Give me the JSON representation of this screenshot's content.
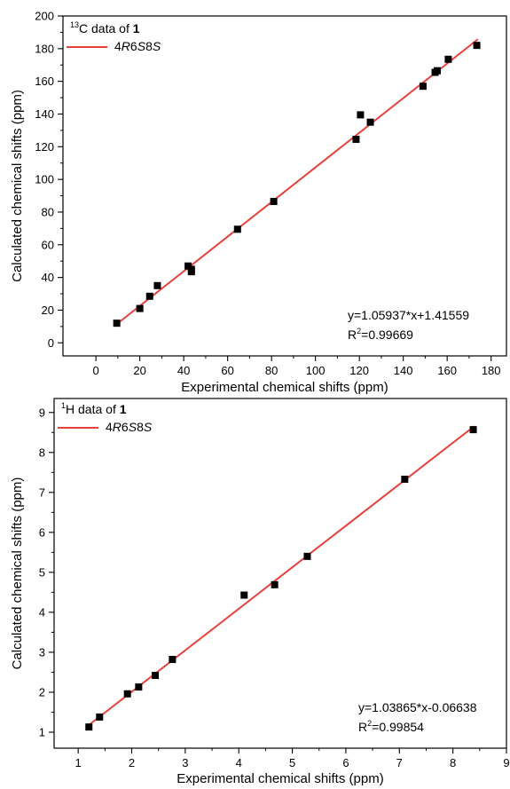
{
  "chart_data": [
    {
      "type": "scatter",
      "legend": {
        "data_label": {
          "sup": "13",
          "text": "C data of ",
          "bold": "1"
        },
        "fit_label": {
          "prefix": "4",
          "R": "R",
          "mid1": "6",
          "S1": "S",
          "mid2": "8",
          "S2": "S"
        },
        "position": "top-left"
      },
      "equation": "y=1.05937*x+1.41559",
      "r2": {
        "prefix": "R",
        "sup": "2",
        "value": "=0.99669"
      },
      "xlabel": "Experimental chemical shifts (ppm)",
      "ylabel": "Calculated chemical shifts (ppm)",
      "xlim": [
        -15,
        187
      ],
      "ylim": [
        -8,
        200
      ],
      "xticks": [
        0,
        20,
        40,
        60,
        80,
        100,
        120,
        140,
        160,
        180
      ],
      "yticks": [
        0,
        20,
        40,
        60,
        80,
        100,
        120,
        140,
        160,
        180,
        200
      ],
      "fit": {
        "slope": 1.05937,
        "intercept": 1.41559,
        "x_range": [
          9,
          174
        ]
      },
      "points": [
        {
          "x": 9.5,
          "y": 12
        },
        {
          "x": 20,
          "y": 21
        },
        {
          "x": 24.5,
          "y": 28.5
        },
        {
          "x": 28,
          "y": 35
        },
        {
          "x": 42,
          "y": 47
        },
        {
          "x": 43.5,
          "y": 43.5
        },
        {
          "x": 43.5,
          "y": 45
        },
        {
          "x": 64.5,
          "y": 69.5
        },
        {
          "x": 81,
          "y": 86.5
        },
        {
          "x": 118.5,
          "y": 124.5
        },
        {
          "x": 120.5,
          "y": 139.5
        },
        {
          "x": 125,
          "y": 135
        },
        {
          "x": 149,
          "y": 157
        },
        {
          "x": 154.5,
          "y": 165.5
        },
        {
          "x": 155.5,
          "y": 166.5
        },
        {
          "x": 160.5,
          "y": 173.5
        },
        {
          "x": 173.5,
          "y": 182
        }
      ]
    },
    {
      "type": "scatter",
      "legend": {
        "data_label": {
          "sup": "1",
          "text": "H data of ",
          "bold": "1"
        },
        "fit_label": {
          "prefix": "4",
          "R": "R",
          "mid1": "6",
          "S1": "S",
          "mid2": "8",
          "S2": "S"
        },
        "position": "top-left"
      },
      "equation": "y=1.03865*x-0.06638",
      "r2": {
        "prefix": "R",
        "sup": "2",
        "value": "=0.99854"
      },
      "xlabel": "Experimental chemical shifts (ppm)",
      "ylabel": "Calculated chemical shifts (ppm)",
      "xlim": [
        0.55,
        9
      ],
      "ylim": [
        0.6,
        9.35
      ],
      "xticks": [
        1,
        2,
        3,
        4,
        5,
        6,
        7,
        8,
        9
      ],
      "yticks": [
        1,
        2,
        3,
        4,
        5,
        6,
        7,
        8,
        9
      ],
      "fit": {
        "slope": 1.03865,
        "intercept": -0.06638,
        "x_range": [
          1.2,
          8.4
        ]
      },
      "points": [
        {
          "x": 1.2,
          "y": 1.13
        },
        {
          "x": 1.4,
          "y": 1.38
        },
        {
          "x": 1.92,
          "y": 1.96
        },
        {
          "x": 2.13,
          "y": 2.13
        },
        {
          "x": 2.44,
          "y": 2.42
        },
        {
          "x": 2.76,
          "y": 2.82
        },
        {
          "x": 4.1,
          "y": 4.43
        },
        {
          "x": 4.67,
          "y": 4.69
        },
        {
          "x": 5.28,
          "y": 5.4
        },
        {
          "x": 7.1,
          "y": 7.33
        },
        {
          "x": 8.38,
          "y": 8.57
        }
      ]
    }
  ]
}
